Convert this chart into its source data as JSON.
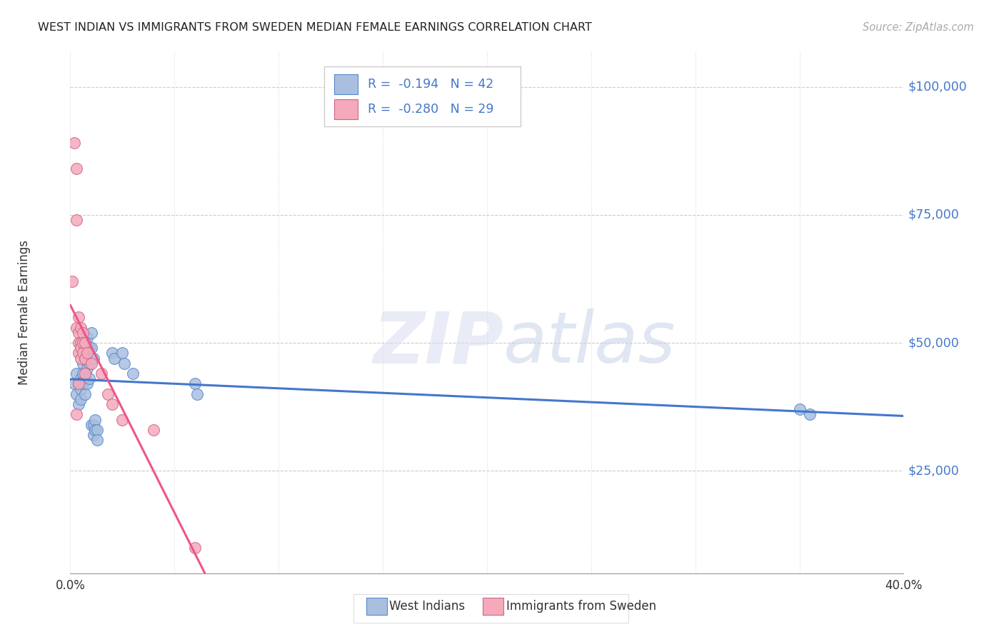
{
  "title": "WEST INDIAN VS IMMIGRANTS FROM SWEDEN MEDIAN FEMALE EARNINGS CORRELATION CHART",
  "source": "Source: ZipAtlas.com",
  "ylabel": "Median Female Earnings",
  "yticks": [
    25000,
    50000,
    75000,
    100000
  ],
  "ytick_labels": [
    "$25,000",
    "$50,000",
    "$75,000",
    "$100,000"
  ],
  "xticks": [
    0.0,
    0.05,
    0.1,
    0.15,
    0.2,
    0.25,
    0.3,
    0.35,
    0.4
  ],
  "xtick_labels": [
    "0.0%",
    "",
    "",
    "",
    "",
    "",
    "",
    "",
    "40.0%"
  ],
  "xmin": 0.0,
  "xmax": 0.4,
  "ymin": 5000,
  "ymax": 107000,
  "legend_r_blue": "-0.194",
  "legend_n_blue": "42",
  "legend_r_pink": "-0.280",
  "legend_n_pink": "29",
  "blue_fill": "#AABFDF",
  "blue_edge": "#5588CC",
  "pink_fill": "#F5AABC",
  "pink_edge": "#CC6688",
  "blue_line": "#4477CC",
  "pink_line": "#EE5588",
  "blue_scatter": [
    [
      0.002,
      42000
    ],
    [
      0.003,
      40000
    ],
    [
      0.003,
      44000
    ],
    [
      0.004,
      38000
    ],
    [
      0.004,
      42000
    ],
    [
      0.005,
      43000
    ],
    [
      0.005,
      41000
    ],
    [
      0.005,
      39000
    ],
    [
      0.006,
      48000
    ],
    [
      0.006,
      46000
    ],
    [
      0.006,
      44000
    ],
    [
      0.006,
      42000
    ],
    [
      0.007,
      50000
    ],
    [
      0.007,
      47000
    ],
    [
      0.007,
      43000
    ],
    [
      0.007,
      40000
    ],
    [
      0.008,
      51000
    ],
    [
      0.008,
      48000
    ],
    [
      0.008,
      45000
    ],
    [
      0.008,
      42000
    ],
    [
      0.009,
      49000
    ],
    [
      0.009,
      46000
    ],
    [
      0.009,
      43000
    ],
    [
      0.01,
      52000
    ],
    [
      0.01,
      49000
    ],
    [
      0.01,
      34000
    ],
    [
      0.011,
      47000
    ],
    [
      0.011,
      34000
    ],
    [
      0.011,
      32000
    ],
    [
      0.012,
      35000
    ],
    [
      0.012,
      33000
    ],
    [
      0.013,
      33000
    ],
    [
      0.013,
      31000
    ],
    [
      0.02,
      48000
    ],
    [
      0.021,
      47000
    ],
    [
      0.025,
      48000
    ],
    [
      0.026,
      46000
    ],
    [
      0.03,
      44000
    ],
    [
      0.06,
      42000
    ],
    [
      0.061,
      40000
    ],
    [
      0.35,
      37000
    ],
    [
      0.355,
      36000
    ]
  ],
  "pink_scatter": [
    [
      0.001,
      62000
    ],
    [
      0.002,
      89000
    ],
    [
      0.003,
      84000
    ],
    [
      0.003,
      74000
    ],
    [
      0.003,
      53000
    ],
    [
      0.004,
      55000
    ],
    [
      0.004,
      52000
    ],
    [
      0.004,
      50000
    ],
    [
      0.004,
      48000
    ],
    [
      0.005,
      53000
    ],
    [
      0.005,
      50000
    ],
    [
      0.005,
      49000
    ],
    [
      0.005,
      47000
    ],
    [
      0.006,
      52000
    ],
    [
      0.006,
      50000
    ],
    [
      0.006,
      48000
    ],
    [
      0.007,
      50000
    ],
    [
      0.007,
      47000
    ],
    [
      0.007,
      44000
    ],
    [
      0.008,
      48000
    ],
    [
      0.01,
      46000
    ],
    [
      0.015,
      44000
    ],
    [
      0.018,
      40000
    ],
    [
      0.02,
      38000
    ],
    [
      0.025,
      35000
    ],
    [
      0.04,
      33000
    ],
    [
      0.003,
      36000
    ],
    [
      0.06,
      10000
    ],
    [
      0.004,
      42000
    ]
  ],
  "watermark_zip": "ZIP",
  "watermark_atlas": "atlas",
  "background_color": "#FFFFFF"
}
